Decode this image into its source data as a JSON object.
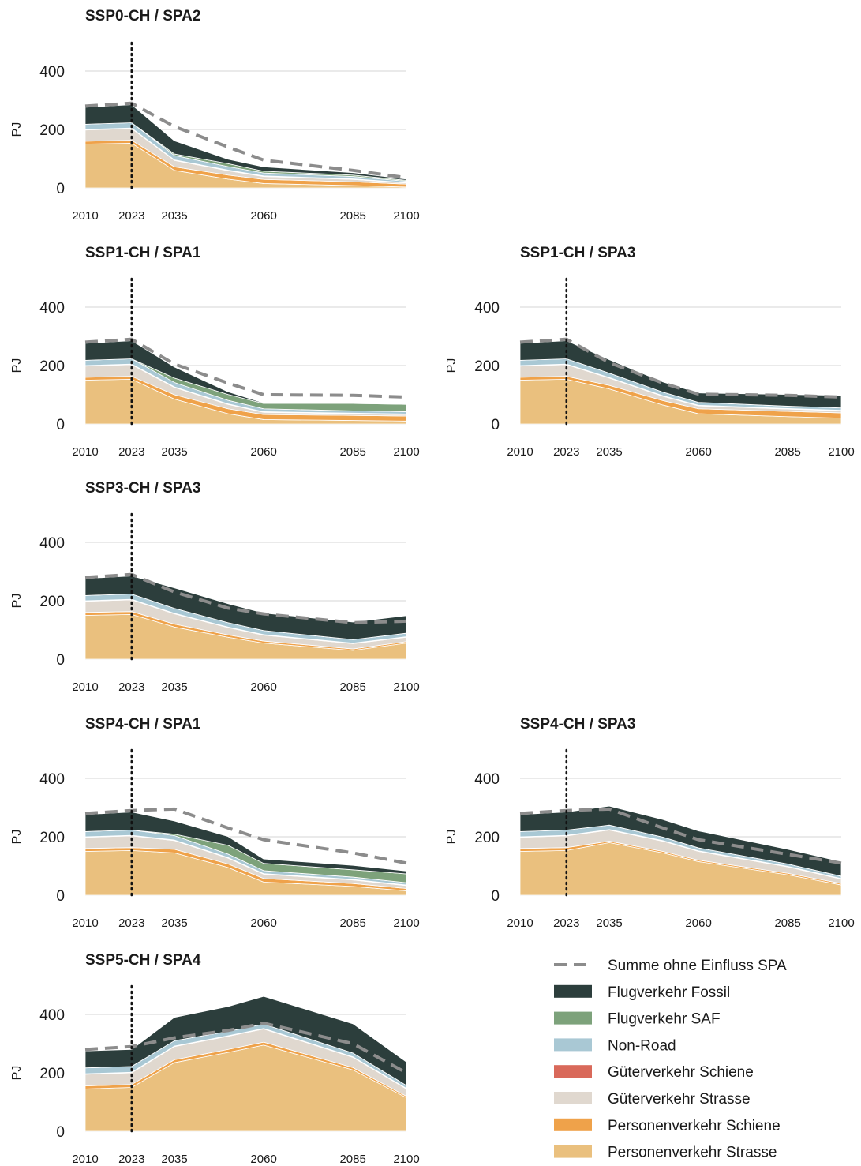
{
  "figure": {
    "legend": [
      {
        "key": "baseline",
        "label": "Summe ohne Einfluss SPA",
        "color": "#8c8c8c",
        "style": "dashed"
      },
      {
        "key": "fossil",
        "label": "Flugverkehr Fossil",
        "color": "#2c3e3c"
      },
      {
        "key": "saf",
        "label": "Flugverkehr SAF",
        "color": "#7da27b"
      },
      {
        "key": "nonroad",
        "label": "Non-Road",
        "color": "#a9c8d4"
      },
      {
        "key": "gs",
        "label": "Güterverkehr Schiene",
        "color": "#d9695a"
      },
      {
        "key": "gstr",
        "label": "Güterverkehr Strasse",
        "color": "#e0d8cf"
      },
      {
        "key": "ps",
        "label": "Personenverkehr Schiene",
        "color": "#efa24a"
      },
      {
        "key": "pstr",
        "label": "Personenverkehr Strasse",
        "color": "#eac07e"
      }
    ],
    "legend_position": "bottom-right"
  },
  "chart_data": [
    {
      "type": "area",
      "title": "SSP0-CH / SPA2",
      "ylabel": "PJ",
      "ylim": [
        0,
        400
      ],
      "yticks": [
        0,
        200,
        400
      ],
      "xticks": [
        "2010",
        "2023",
        "2035",
        "2060",
        "2085",
        "2100"
      ],
      "x": [
        2010,
        2023,
        2035,
        2050,
        2060,
        2085,
        2100
      ],
      "vline": 2023,
      "series": [
        {
          "key": "pstr",
          "values": [
            150,
            153,
            60,
            30,
            15,
            8,
            3
          ]
        },
        {
          "key": "ps",
          "values": [
            10,
            10,
            12,
            14,
            14,
            13,
            10
          ]
        },
        {
          "key": "gstr",
          "values": [
            38,
            40,
            22,
            15,
            10,
            8,
            4
          ]
        },
        {
          "key": "gs",
          "values": [
            2,
            2,
            2,
            2,
            2,
            2,
            1
          ]
        },
        {
          "key": "nonroad",
          "values": [
            18,
            18,
            15,
            12,
            10,
            8,
            5
          ]
        },
        {
          "key": "saf",
          "values": [
            0,
            0,
            5,
            10,
            6,
            5,
            3
          ]
        },
        {
          "key": "fossil",
          "values": [
            58,
            62,
            45,
            15,
            15,
            8,
            4
          ]
        }
      ],
      "baseline": [
        280,
        290,
        210,
        140,
        95,
        60,
        35
      ]
    },
    {
      "type": "area",
      "title": "SSP1-CH / SPA1",
      "ylabel": "PJ",
      "ylim": [
        0,
        400
      ],
      "yticks": [
        0,
        200,
        400
      ],
      "xticks": [
        "2010",
        "2023",
        "2035",
        "2060",
        "2085",
        "2100"
      ],
      "x": [
        2010,
        2023,
        2035,
        2050,
        2060,
        2085,
        2100
      ],
      "vline": 2023,
      "series": [
        {
          "key": "pstr",
          "values": [
            150,
            153,
            85,
            35,
            15,
            12,
            10
          ]
        },
        {
          "key": "ps",
          "values": [
            10,
            10,
            15,
            17,
            17,
            17,
            17
          ]
        },
        {
          "key": "gstr",
          "values": [
            38,
            40,
            25,
            15,
            8,
            6,
            5
          ]
        },
        {
          "key": "gs",
          "values": [
            2,
            2,
            2,
            2,
            2,
            2,
            2
          ]
        },
        {
          "key": "nonroad",
          "values": [
            18,
            18,
            15,
            12,
            10,
            8,
            8
          ]
        },
        {
          "key": "saf",
          "values": [
            0,
            0,
            15,
            20,
            18,
            25,
            25
          ]
        },
        {
          "key": "fossil",
          "values": [
            58,
            62,
            38,
            9,
            2,
            2,
            2
          ]
        }
      ],
      "baseline": [
        280,
        290,
        205,
        140,
        100,
        98,
        92
      ]
    },
    {
      "type": "area",
      "title": "SSP1-CH / SPA3",
      "ylabel": "PJ",
      "ylim": [
        0,
        400
      ],
      "yticks": [
        0,
        200,
        400
      ],
      "xticks": [
        "2010",
        "2023",
        "2035",
        "2060",
        "2085",
        "2100"
      ],
      "x": [
        2010,
        2023,
        2035,
        2050,
        2060,
        2085,
        2100
      ],
      "vline": 2023,
      "series": [
        {
          "key": "pstr",
          "values": [
            150,
            153,
            120,
            65,
            35,
            25,
            20
          ]
        },
        {
          "key": "ps",
          "values": [
            10,
            10,
            12,
            15,
            17,
            18,
            18
          ]
        },
        {
          "key": "gstr",
          "values": [
            38,
            40,
            25,
            15,
            10,
            8,
            7
          ]
        },
        {
          "key": "gs",
          "values": [
            2,
            2,
            2,
            2,
            2,
            2,
            2
          ]
        },
        {
          "key": "nonroad",
          "values": [
            18,
            18,
            15,
            12,
            10,
            8,
            8
          ]
        },
        {
          "key": "saf",
          "values": [
            0,
            0,
            0,
            0,
            0,
            0,
            0
          ]
        },
        {
          "key": "fossil",
          "values": [
            58,
            62,
            46,
            35,
            32,
            40,
            43
          ]
        }
      ],
      "baseline": [
        280,
        290,
        210,
        140,
        102,
        98,
        92
      ]
    },
    {
      "type": "area",
      "title": "SSP3-CH / SPA3",
      "ylabel": "PJ",
      "ylim": [
        0,
        400
      ],
      "yticks": [
        0,
        200,
        400
      ],
      "xticks": [
        "2010",
        "2023",
        "2035",
        "2060",
        "2085",
        "2100"
      ],
      "x": [
        2010,
        2023,
        2035,
        2050,
        2060,
        2085,
        2100
      ],
      "vline": 2023,
      "series": [
        {
          "key": "pstr",
          "values": [
            150,
            153,
            110,
            75,
            55,
            30,
            55
          ]
        },
        {
          "key": "ps",
          "values": [
            10,
            10,
            10,
            8,
            7,
            5,
            5
          ]
        },
        {
          "key": "gstr",
          "values": [
            38,
            40,
            35,
            25,
            20,
            18,
            15
          ]
        },
        {
          "key": "gs",
          "values": [
            2,
            2,
            2,
            2,
            2,
            2,
            2
          ]
        },
        {
          "key": "nonroad",
          "values": [
            18,
            18,
            17,
            15,
            14,
            12,
            12
          ]
        },
        {
          "key": "saf",
          "values": [
            0,
            0,
            0,
            0,
            0,
            0,
            0
          ]
        },
        {
          "key": "fossil",
          "values": [
            58,
            62,
            70,
            65,
            60,
            60,
            60
          ]
        }
      ],
      "baseline": [
        280,
        290,
        230,
        175,
        155,
        125,
        130
      ]
    },
    {
      "type": "area",
      "title": "SSP4-CH / SPA1",
      "ylabel": "PJ",
      "ylim": [
        0,
        400
      ],
      "yticks": [
        0,
        200,
        400
      ],
      "xticks": [
        "2010",
        "2023",
        "2035",
        "2060",
        "2085",
        "2100"
      ],
      "x": [
        2010,
        2023,
        2035,
        2050,
        2060,
        2085,
        2100
      ],
      "vline": 2023,
      "series": [
        {
          "key": "pstr",
          "values": [
            150,
            153,
            145,
            95,
            45,
            30,
            15
          ]
        },
        {
          "key": "ps",
          "values": [
            10,
            10,
            12,
            12,
            12,
            10,
            8
          ]
        },
        {
          "key": "gstr",
          "values": [
            38,
            40,
            30,
            20,
            15,
            12,
            10
          ]
        },
        {
          "key": "gs",
          "values": [
            2,
            2,
            2,
            2,
            2,
            2,
            2
          ]
        },
        {
          "key": "nonroad",
          "values": [
            18,
            18,
            15,
            12,
            10,
            8,
            8
          ]
        },
        {
          "key": "saf",
          "values": [
            0,
            0,
            5,
            30,
            25,
            25,
            30
          ]
        },
        {
          "key": "fossil",
          "values": [
            58,
            62,
            45,
            30,
            15,
            15,
            10
          ]
        }
      ],
      "baseline": [
        280,
        290,
        295,
        230,
        190,
        145,
        110
      ]
    },
    {
      "type": "area",
      "title": "SSP4-CH / SPA3",
      "ylabel": "PJ",
      "ylim": [
        0,
        400
      ],
      "yticks": [
        0,
        200,
        400
      ],
      "xticks": [
        "2010",
        "2023",
        "2035",
        "2060",
        "2085",
        "2100"
      ],
      "x": [
        2010,
        2023,
        2035,
        2050,
        2060,
        2085,
        2100
      ],
      "vline": 2023,
      "series": [
        {
          "key": "pstr",
          "values": [
            150,
            153,
            180,
            145,
            115,
            70,
            35
          ]
        },
        {
          "key": "ps",
          "values": [
            10,
            10,
            5,
            5,
            5,
            5,
            5
          ]
        },
        {
          "key": "gstr",
          "values": [
            38,
            40,
            38,
            35,
            30,
            22,
            15
          ]
        },
        {
          "key": "gs",
          "values": [
            2,
            2,
            2,
            2,
            2,
            2,
            2
          ]
        },
        {
          "key": "nonroad",
          "values": [
            18,
            18,
            15,
            12,
            10,
            8,
            8
          ]
        },
        {
          "key": "saf",
          "values": [
            0,
            0,
            0,
            0,
            0,
            0,
            0
          ]
        },
        {
          "key": "fossil",
          "values": [
            58,
            62,
            65,
            60,
            58,
            50,
            50
          ]
        }
      ],
      "baseline": [
        280,
        290,
        295,
        230,
        190,
        140,
        110
      ]
    },
    {
      "type": "area",
      "title": "SSP5-CH / SPA4",
      "ylabel": "PJ",
      "ylim": [
        0,
        400
      ],
      "yticks": [
        0,
        200,
        400
      ],
      "xticks": [
        "2010",
        "2023",
        "2035",
        "2060",
        "2085",
        "2100"
      ],
      "x": [
        2010,
        2023,
        2035,
        2050,
        2060,
        2085,
        2100
      ],
      "vline": 2023,
      "series": [
        {
          "key": "pstr",
          "values": [
            145,
            150,
            235,
            270,
            295,
            210,
            115
          ]
        },
        {
          "key": "ps",
          "values": [
            10,
            10,
            10,
            10,
            10,
            8,
            5
          ]
        },
        {
          "key": "gstr",
          "values": [
            40,
            40,
            45,
            45,
            45,
            35,
            25
          ]
        },
        {
          "key": "gs",
          "values": [
            2,
            2,
            2,
            2,
            2,
            2,
            2
          ]
        },
        {
          "key": "nonroad",
          "values": [
            20,
            20,
            18,
            15,
            15,
            13,
            10
          ]
        },
        {
          "key": "saf",
          "values": [
            0,
            0,
            0,
            0,
            0,
            0,
            0
          ]
        },
        {
          "key": "fossil",
          "values": [
            58,
            58,
            80,
            85,
            95,
            100,
            80
          ]
        }
      ],
      "baseline": [
        280,
        290,
        320,
        345,
        370,
        300,
        200
      ]
    }
  ]
}
